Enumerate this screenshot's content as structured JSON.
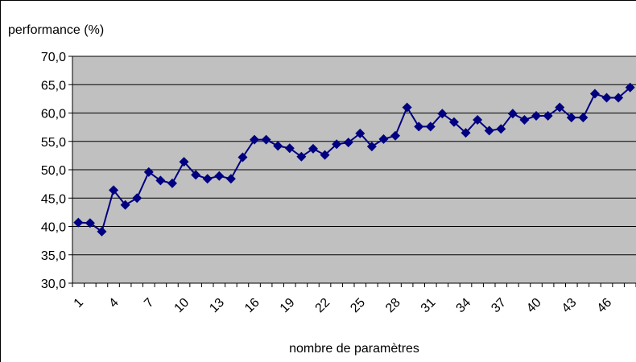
{
  "chart_data": {
    "type": "line",
    "y_label": "performance (%)",
    "x_label": "nombre de paramètres",
    "categories": [
      "1",
      null,
      null,
      "4",
      null,
      null,
      "7",
      null,
      null,
      "10",
      null,
      null,
      "13",
      null,
      null,
      "16",
      null,
      null,
      "19",
      null,
      null,
      "22",
      null,
      null,
      "25",
      null,
      null,
      "28",
      null,
      null,
      "31",
      null,
      null,
      "34",
      null,
      null,
      "37",
      null,
      null,
      "40",
      null,
      null,
      "43",
      null,
      null,
      "46",
      null,
      null
    ],
    "series": [
      {
        "name": "performance",
        "color": "#000080",
        "values": [
          40.7,
          40.6,
          39.1,
          46.4,
          43.8,
          45.0,
          49.6,
          48.1,
          47.6,
          51.4,
          49.1,
          48.4,
          48.9,
          48.4,
          52.2,
          55.3,
          55.3,
          54.2,
          53.8,
          52.3,
          53.7,
          52.6,
          54.5,
          54.8,
          56.4,
          54.1,
          55.4,
          56.0,
          61.0,
          57.6,
          57.6,
          59.9,
          58.4,
          56.5,
          58.8,
          56.9,
          57.2,
          59.9,
          58.8,
          59.5,
          59.5,
          61.0,
          59.2,
          59.2,
          63.4,
          62.7,
          62.7,
          64.5
        ]
      }
    ],
    "ylim": [
      30,
      70
    ],
    "yticks": [
      {
        "value": 30,
        "label": "30,0"
      },
      {
        "value": 35,
        "label": "35,0"
      },
      {
        "value": 40,
        "label": "40,0"
      },
      {
        "value": 45,
        "label": "45,0"
      },
      {
        "value": 50,
        "label": "50,0"
      },
      {
        "value": 55,
        "label": "55,0"
      },
      {
        "value": 60,
        "label": "60,0"
      },
      {
        "value": 65,
        "label": "65,0"
      },
      {
        "value": 70,
        "label": "70,0"
      }
    ],
    "grid": true,
    "plot_background": "#c0c0c0"
  }
}
